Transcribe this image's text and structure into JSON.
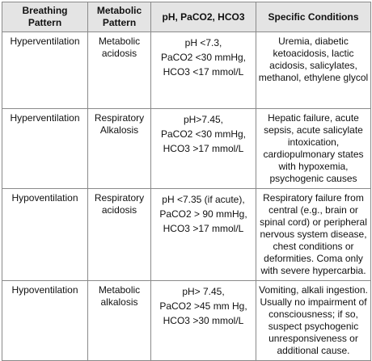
{
  "table": {
    "headers": [
      [
        "Breathing",
        "Pattern"
      ],
      [
        "Metabolic",
        "Pattern"
      ],
      [
        "pH, PaCO2, HCO3"
      ],
      [
        "Specific Conditions"
      ]
    ],
    "rows": [
      {
        "breathing": "Hyperventilation",
        "metabolic": [
          "Metabolic",
          "acidosis"
        ],
        "values": [
          "pH <7.3,",
          "PaCO2 <30 mmHg,",
          "HCO3 <17 mmol/L"
        ],
        "conditions": "Uremia, diabetic ketoacidosis, lactic acidosis, salicylates, methanol, ethylene glycol"
      },
      {
        "breathing": "Hyperventilation",
        "metabolic": [
          "Respiratory",
          "Alkalosis"
        ],
        "values": [
          "pH>7.45,",
          "PaCO2 <30 mmHg,",
          "HCO3 >17 mmol/L"
        ],
        "conditions": "Hepatic failure, acute sepsis, acute salicylate intoxication, cardiopulmonary states with hypoxemia, psychogenic causes"
      },
      {
        "breathing": "Hypoventilation",
        "metabolic": [
          "Respiratory",
          "acidosis"
        ],
        "values": [
          "pH <7.35 (if acute),",
          "PaCO2 > 90 mmHg,",
          "HCO3 >17 mmol/L"
        ],
        "conditions": "Respiratory failure from central (e.g., brain or spinal cord) or peripheral nervous system disease, chest conditions or deformities. Coma only with severe hypercarbia."
      },
      {
        "breathing": "Hypoventilation",
        "metabolic": [
          "Metabolic",
          "alkalosis"
        ],
        "values": [
          "pH> 7.45,",
          "PaCO2 >45 mm Hg,",
          "HCO3 >30 mmol/L"
        ],
        "conditions": "Vomiting, alkali ingestion. Usually no impairment of consciousness; if so, suspect psychogenic unresponsiveness or additional cause."
      }
    ]
  }
}
